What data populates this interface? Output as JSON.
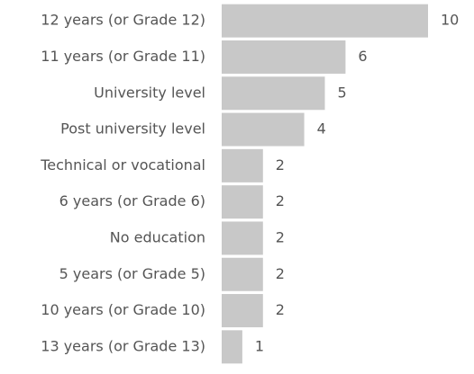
{
  "chart_data": {
    "type": "bar",
    "orientation": "horizontal",
    "categories": [
      "12 years (or Grade 12)",
      "11 years (or Grade 11)",
      "University level",
      "Post university level",
      "Technical or vocational",
      "6 years (or Grade 6)",
      "No education",
      "5 years (or Grade 5)",
      "10 years (or Grade 10)",
      "13 years (or Grade 13)"
    ],
    "values": [
      10,
      6,
      5,
      4,
      2,
      2,
      2,
      2,
      2,
      1
    ],
    "color": "#c8c8c8"
  }
}
